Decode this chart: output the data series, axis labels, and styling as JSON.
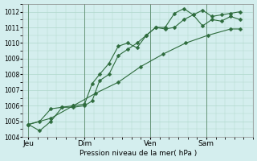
{
  "background_color": "#d4eeee",
  "grid_color": "#b0d8cc",
  "line_color": "#2d6b3c",
  "xlabel": "Pression niveau de la mer( hPa )",
  "ylim": [
    1004,
    1012.5
  ],
  "yticks": [
    1004,
    1005,
    1006,
    1007,
    1008,
    1009,
    1010,
    1011,
    1012
  ],
  "day_labels": [
    "Jeu",
    "Dim",
    "Ven",
    "Sam"
  ],
  "day_positions": [
    0.0,
    3.0,
    6.5,
    9.5
  ],
  "xlim": [
    -0.3,
    12.0
  ],
  "series1_x": [
    0.0,
    0.6,
    1.2,
    1.8,
    2.4,
    3.0,
    3.4,
    3.8,
    4.3,
    4.8,
    5.3,
    5.8,
    6.3,
    6.8,
    7.3,
    7.8,
    8.3,
    8.8,
    9.3,
    9.8,
    10.3,
    10.8,
    11.3
  ],
  "series1_y": [
    1004.8,
    1004.4,
    1005.0,
    1005.9,
    1006.0,
    1006.1,
    1007.4,
    1008.0,
    1008.7,
    1009.8,
    1010.0,
    1009.7,
    1010.5,
    1011.0,
    1010.9,
    1011.0,
    1011.5,
    1011.8,
    1012.1,
    1011.7,
    1011.8,
    1011.9,
    1012.0
  ],
  "series2_x": [
    0.0,
    0.6,
    1.2,
    1.8,
    2.4,
    3.0,
    3.4,
    3.8,
    4.3,
    4.8,
    5.3,
    5.8,
    6.3,
    6.8,
    7.3,
    7.8,
    8.3,
    8.8,
    9.3,
    9.8,
    10.3,
    10.8,
    11.3
  ],
  "series2_y": [
    1004.8,
    1005.0,
    1005.8,
    1005.9,
    1005.9,
    1006.0,
    1006.3,
    1007.6,
    1008.0,
    1009.2,
    1009.6,
    1010.0,
    1010.5,
    1011.0,
    1011.0,
    1011.9,
    1012.2,
    1011.8,
    1011.1,
    1011.5,
    1011.4,
    1011.7,
    1011.5
  ],
  "series3_x": [
    0.0,
    1.2,
    2.4,
    3.6,
    4.8,
    6.0,
    7.2,
    8.4,
    9.6,
    10.8,
    11.3
  ],
  "series3_y": [
    1004.8,
    1005.2,
    1006.0,
    1006.8,
    1007.5,
    1008.5,
    1009.3,
    1010.0,
    1010.5,
    1010.9,
    1010.9
  ]
}
